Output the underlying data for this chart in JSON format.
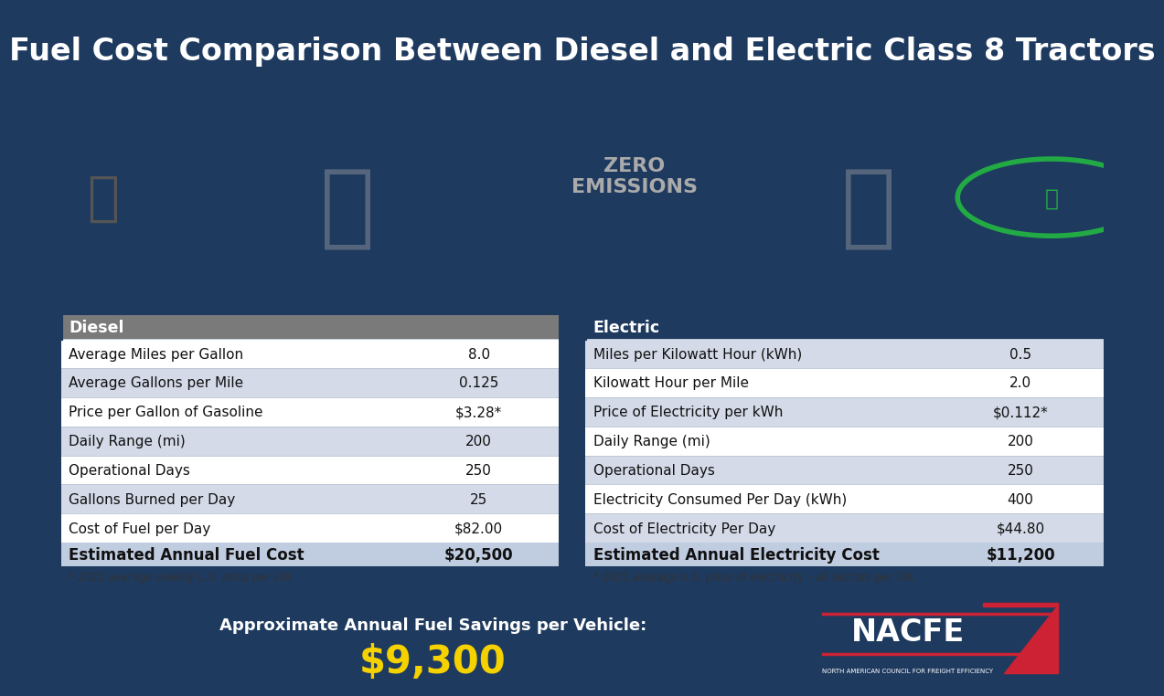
{
  "title": "Fuel Cost Comparison Between Diesel and Electric Class 8 Tractors",
  "title_bg": "#1e3a5f",
  "title_color": "#ffffff",
  "title_fontsize": 26,
  "content_bg": "#f0f2f6",
  "outer_border": "#1e3a5f",
  "footer_bg": "#1e3a5f",
  "savings_label": "Approximate Annual Fuel Savings per Vehicle:",
  "savings_value": "$9,300",
  "savings_color": "#f5d100",
  "nacfe_text": "NACFE",
  "nacfe_sub": "NORTH AMERICAN COUNCIL FOR FREIGHT EFFICIENCY",
  "diesel_header": "Diesel",
  "diesel_header_bg": "#7a7a7a",
  "diesel_header_color": "#ffffff",
  "diesel_rows": [
    [
      "Average Miles per Gallon",
      "8.0"
    ],
    [
      "Average Gallons per Mile",
      "0.125"
    ],
    [
      "Price per Gallon of Gasoline",
      "$3.28*"
    ],
    [
      "Daily Range (mi)",
      "200"
    ],
    [
      "Operational Days",
      "250"
    ],
    [
      "Gallons Burned per Day",
      "25"
    ],
    [
      "Cost of Fuel per Day",
      "$82.00"
    ]
  ],
  "diesel_footer_label": "Estimated Annual Fuel Cost",
  "diesel_footer_value": "$20,500",
  "diesel_footnote": "* 2021 average weekly U.S. price per EIA",
  "electric_header": "Electric",
  "electric_header_bg": "#1e3a5f",
  "electric_header_color": "#ffffff",
  "electric_rows": [
    [
      "Miles per Kilowatt Hour (kWh)",
      "0.5"
    ],
    [
      "Kilowatt Hour per Mile",
      "2.0"
    ],
    [
      "Price of Electricity per kWh",
      "$0.112*"
    ],
    [
      "Daily Range (mi)",
      "200"
    ],
    [
      "Operational Days",
      "250"
    ],
    [
      "Electricity Consumed Per Day (kWh)",
      "400"
    ],
    [
      "Cost of Electricity Per Day",
      "$44.80"
    ]
  ],
  "electric_footer_label": "Estimated Annual Electricity Cost",
  "electric_footer_value": "$11,200",
  "electric_footnote": "* 2021 average U.S. price of electricity – all sectors per EIA",
  "row_colors_diesel": [
    "#ffffff",
    "#d4dae8",
    "#ffffff",
    "#d4dae8",
    "#ffffff",
    "#d4dae8",
    "#ffffff"
  ],
  "row_colors_electric": [
    "#d4dae8",
    "#ffffff",
    "#d4dae8",
    "#ffffff",
    "#d4dae8",
    "#ffffff",
    "#d4dae8"
  ],
  "footer_row_bg": "#c0cce0",
  "col_split": 0.68
}
